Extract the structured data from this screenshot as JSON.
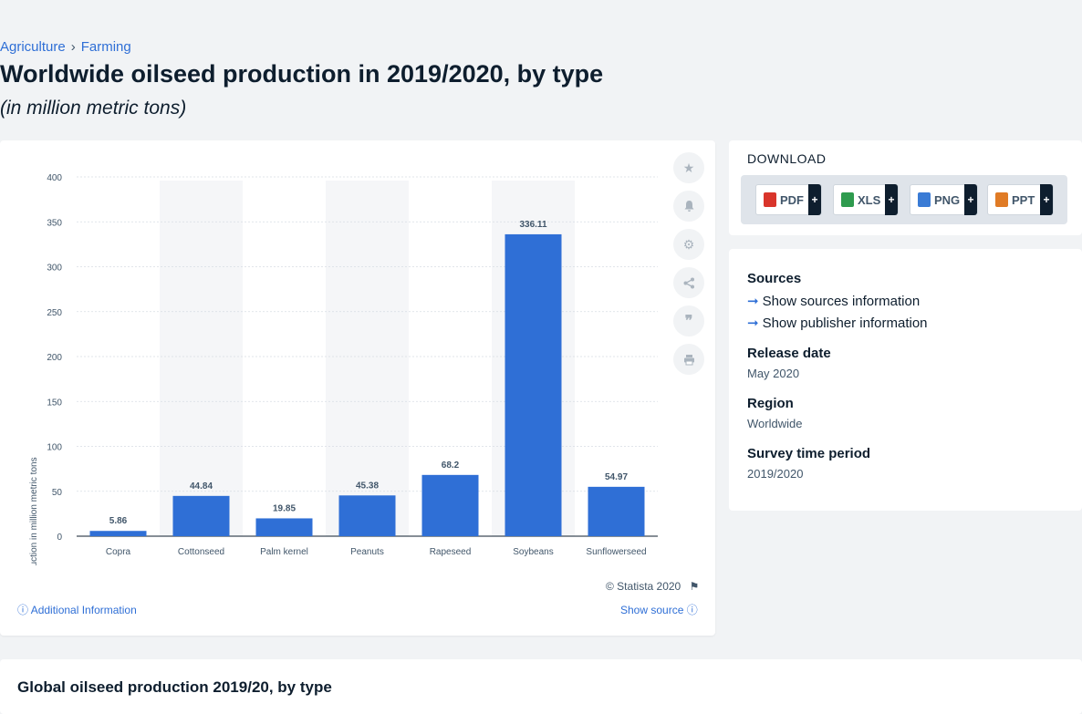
{
  "breadcrumb": {
    "items": [
      "Agriculture",
      "Farming"
    ],
    "separator": "›"
  },
  "page": {
    "title": "Worldwide oilseed production in 2019/2020, by type",
    "subtitle": "(in million metric tons)"
  },
  "chart_data": {
    "type": "bar",
    "categories": [
      "Copra",
      "Cottonseed",
      "Palm kernel",
      "Peanuts",
      "Rapeseed",
      "Soybeans",
      "Sunflowerseed"
    ],
    "values": [
      5.86,
      44.84,
      19.85,
      45.38,
      68.2,
      336.11,
      54.97
    ],
    "data_labels": [
      "5.86",
      "44.84",
      "19.85",
      "45.38",
      "68.2",
      "336.11",
      "54.97"
    ],
    "ylabel": "Production in million metric tons",
    "ylim": [
      0,
      400
    ],
    "yticks": [
      0,
      50,
      100,
      150,
      200,
      250,
      300,
      350,
      400
    ],
    "grid": true,
    "bar_color": "#2f6fd6"
  },
  "chart_footer": {
    "copyright": "© Statista 2020",
    "additional_info": "Additional Information",
    "show_source": "Show source"
  },
  "chart_tools": [
    "star-icon",
    "bell-icon",
    "gear-icon",
    "share-icon",
    "quote-icon",
    "print-icon"
  ],
  "download": {
    "title": "DOWNLOAD",
    "buttons": [
      {
        "label": "PDF",
        "icon": "pdf-icon",
        "color": "#d9352b"
      },
      {
        "label": "XLS",
        "icon": "xls-icon",
        "color": "#2e9b4e"
      },
      {
        "label": "PNG",
        "icon": "png-icon",
        "color": "#3a7bd5"
      },
      {
        "label": "PPT",
        "icon": "ppt-icon",
        "color": "#e07b25"
      }
    ],
    "plus": "+"
  },
  "info": {
    "sources_heading": "Sources",
    "show_sources": "Show sources information",
    "show_publisher": "Show publisher information",
    "release_heading": "Release date",
    "release_value": "May 2020",
    "region_heading": "Region",
    "region_value": "Worldwide",
    "period_heading": "Survey time period",
    "period_value": "2019/2020"
  },
  "bottom": {
    "title": "Global oilseed production 2019/20, by type"
  }
}
